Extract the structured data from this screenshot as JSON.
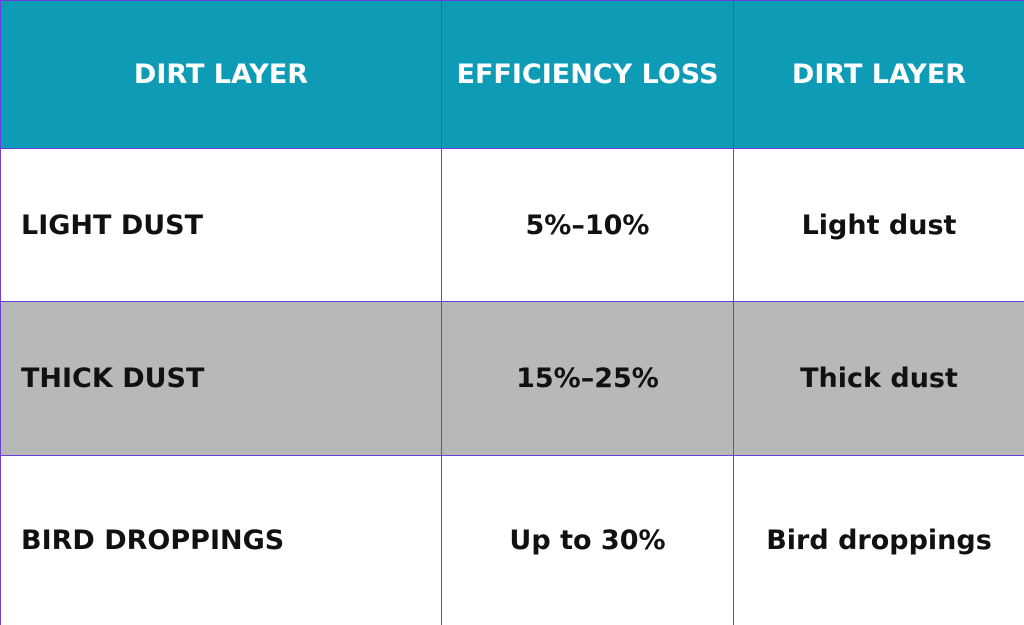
{
  "table": {
    "header": [
      "DIRT LAYER",
      "EFFICIENCY LOSS",
      "DIRT LAYER"
    ],
    "rows": [
      [
        "LIGHT DUST",
        "5%–10%",
        "Light dust"
      ],
      [
        "THICK DUST",
        "15%–25%",
        "Thick dust"
      ],
      [
        "BIRD DROPPINGS",
        "Up to 30%",
        "Bird droppings"
      ]
    ]
  }
}
